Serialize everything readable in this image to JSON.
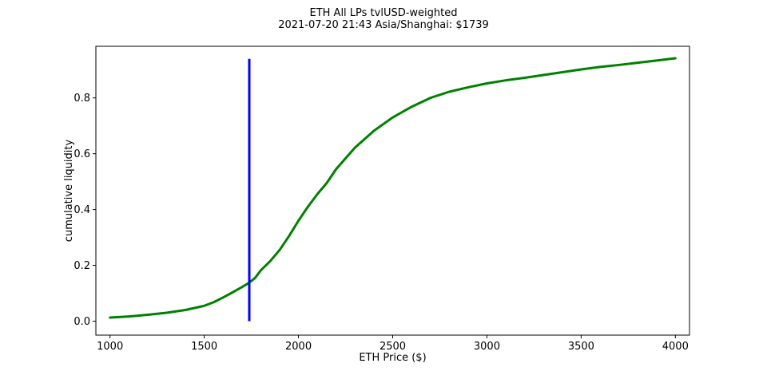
{
  "chart_data": {
    "type": "line",
    "title": "ETH All LPs tvlUSD-weighted",
    "subtitle": "2021-07-20 21:43 Asia/Shanghai: $1739",
    "xlabel": "ETH Price ($)",
    "ylabel": "cumulative liquidity",
    "xlim": [
      925,
      4075
    ],
    "ylim": [
      -0.05,
      0.985
    ],
    "xticks": [
      1000,
      1500,
      2000,
      2500,
      3000,
      3500,
      4000
    ],
    "yticks": [
      0.0,
      0.2,
      0.4,
      0.6,
      0.8
    ],
    "ytick_labels": [
      "0.0",
      "0.2",
      "0.4",
      "0.6",
      "0.8"
    ],
    "grid": false,
    "series": [
      {
        "color": "#008000",
        "x": [
          1000,
          1100,
          1200,
          1300,
          1400,
          1500,
          1550,
          1600,
          1650,
          1700,
          1739,
          1770,
          1800,
          1850,
          1900,
          1950,
          2000,
          2050,
          2100,
          2150,
          2200,
          2300,
          2400,
          2500,
          2600,
          2700,
          2800,
          2900,
          3000,
          3100,
          3200,
          3300,
          3400,
          3500,
          3600,
          3700,
          3800,
          3900,
          4000
        ],
        "y": [
          0.013,
          0.017,
          0.023,
          0.03,
          0.04,
          0.055,
          0.068,
          0.085,
          0.103,
          0.122,
          0.138,
          0.155,
          0.182,
          0.215,
          0.255,
          0.305,
          0.36,
          0.41,
          0.455,
          0.495,
          0.545,
          0.622,
          0.682,
          0.73,
          0.768,
          0.8,
          0.822,
          0.838,
          0.852,
          0.863,
          0.872,
          0.882,
          0.892,
          0.902,
          0.911,
          0.918,
          0.926,
          0.934,
          0.942
        ]
      }
    ],
    "vline": {
      "x": 1739,
      "ymin": 0.0,
      "ymax": 0.94,
      "color": "#0000ff"
    }
  }
}
